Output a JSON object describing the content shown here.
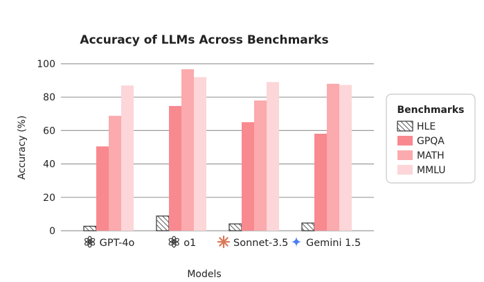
{
  "chart_data": {
    "type": "bar",
    "title": "Accuracy of LLMs Across Benchmarks",
    "xlabel": "Models",
    "ylabel": "Accuracy (%)",
    "ylim": [
      0,
      100
    ],
    "yticks": [
      0,
      20,
      40,
      60,
      80,
      100
    ],
    "grid": true,
    "categories": [
      "GPT-4o",
      "o1",
      "Sonnet-3.5",
      "Gemini 1.5"
    ],
    "category_icons": [
      "openai-logo-icon",
      "openai-logo-icon",
      "anthropic-star-icon",
      "gemini-sparkle-icon"
    ],
    "series": [
      {
        "name": "HLE",
        "values": [
          2.7,
          8.8,
          4.1,
          4.6
        ],
        "color": "#ffffff",
        "hatch": true
      },
      {
        "name": "GPQA",
        "values": [
          50.5,
          74.7,
          65.0,
          58.1
        ],
        "color": "#f8898f"
      },
      {
        "name": "MATH",
        "values": [
          68.8,
          96.7,
          78.0,
          88.0
        ],
        "color": "#fbaaad"
      },
      {
        "name": "MMLU",
        "values": [
          87.0,
          92.0,
          89.0,
          87.3
        ],
        "color": "#fcd6d8"
      }
    ],
    "legend": {
      "title": "Benchmarks",
      "placement": "right"
    }
  }
}
